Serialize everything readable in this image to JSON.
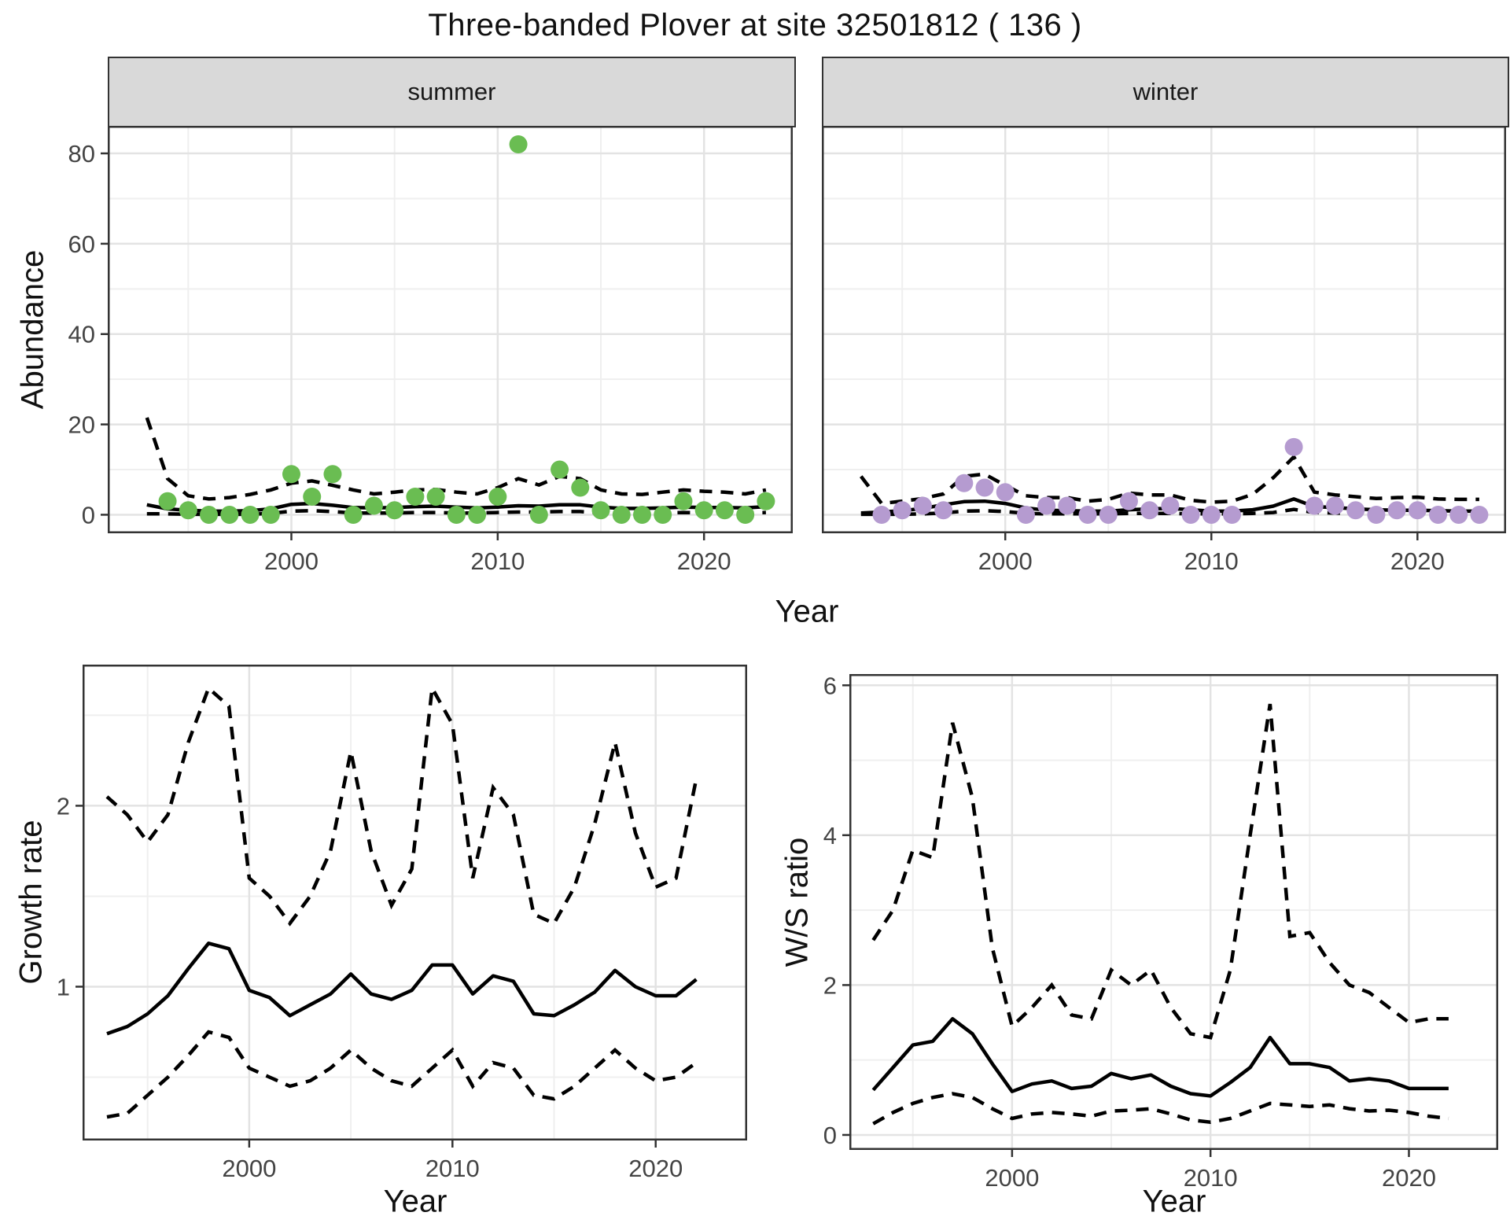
{
  "title": "Three-banded Plover at site 32501812 ( 136 )",
  "facets": {
    "summer_label": "summer",
    "winter_label": "winter"
  },
  "axis_titles": {
    "abundance": "Abundance",
    "year_top": "Year",
    "growth": "Growth rate",
    "ws": "W/S ratio",
    "year_bottom_left": "Year",
    "year_bottom_right": "Year"
  },
  "colors": {
    "summer_point": "#6abd52",
    "winter_point": "#b59bd0",
    "line": "#000000",
    "strip_bg": "#d9d9d9",
    "panel_border": "#333333",
    "grid_major": "#e3e3e3",
    "grid_minor": "#efefef",
    "tick_text": "#444444"
  },
  "chart_data": [
    {
      "id": "abundance-summer",
      "type": "scatter",
      "facet_label": "summer",
      "xlabel": "Year",
      "ylabel": "Abundance",
      "xlim": [
        1991.1,
        2024.3
      ],
      "ylim": [
        -4.1,
        86.1
      ],
      "x_major": [
        2000,
        2010,
        2020
      ],
      "x_minor": [
        1995,
        2005,
        2015
      ],
      "y_major": [
        0,
        20,
        40,
        60,
        80
      ],
      "y_minor": [
        10,
        30,
        50,
        70
      ],
      "x_tick_labels": [
        "2000",
        "2010",
        "2020"
      ],
      "y_tick_labels": [
        "0",
        "20",
        "40",
        "60",
        "80"
      ],
      "show_y_tick_labels": true,
      "point_color": "#6abd52",
      "series": {
        "points": {
          "years": [
            1994,
            1995,
            1996,
            1997,
            1998,
            1999,
            2000,
            2001,
            2002,
            2003,
            2004,
            2005,
            2006,
            2007,
            2008,
            2009,
            2010,
            2011,
            2012,
            2013,
            2014,
            2015,
            2016,
            2017,
            2018,
            2019,
            2020,
            2021,
            2022,
            2023
          ],
          "values": [
            3,
            1,
            0,
            0,
            0,
            0,
            9,
            4,
            9,
            0,
            2,
            1,
            4,
            4,
            0,
            0,
            4,
            82,
            0,
            10,
            6,
            1,
            0,
            0,
            0,
            3,
            1,
            1,
            0,
            3
          ]
        },
        "fit": {
          "years": [
            1993,
            1994,
            1995,
            1996,
            1997,
            1998,
            1999,
            2000,
            2001,
            2002,
            2003,
            2004,
            2005,
            2006,
            2007,
            2008,
            2009,
            2010,
            2011,
            2012,
            2013,
            2014,
            2015,
            2016,
            2017,
            2018,
            2019,
            2020,
            2021,
            2022,
            2023
          ],
          "values": [
            2.2,
            1.3,
            1.0,
            0.8,
            0.8,
            0.9,
            1.3,
            2.3,
            2.5,
            2.1,
            1.6,
            1.5,
            1.6,
            1.8,
            1.9,
            1.7,
            1.5,
            1.7,
            2.0,
            1.9,
            2.2,
            2.2,
            1.7,
            1.4,
            1.4,
            1.5,
            1.7,
            1.6,
            1.6,
            1.5,
            1.8
          ]
        },
        "upper": {
          "years": [
            1993,
            1994,
            1995,
            1996,
            1997,
            1998,
            1999,
            2000,
            2001,
            2002,
            2003,
            2004,
            2005,
            2006,
            2007,
            2008,
            2009,
            2010,
            2011,
            2012,
            2013,
            2014,
            2015,
            2016,
            2017,
            2018,
            2019,
            2020,
            2021,
            2022,
            2023
          ],
          "values": [
            21.5,
            8.0,
            4.2,
            3.5,
            3.8,
            4.5,
            5.5,
            7.0,
            7.5,
            6.5,
            5.5,
            4.6,
            5.0,
            5.5,
            5.6,
            5.0,
            4.6,
            6.0,
            8.0,
            6.6,
            8.5,
            8.0,
            5.5,
            4.6,
            4.5,
            5.0,
            5.5,
            5.2,
            5.0,
            4.6,
            5.5
          ]
        },
        "lower": {
          "years": [
            1993,
            1994,
            1995,
            1996,
            1997,
            1998,
            1999,
            2000,
            2001,
            2002,
            2003,
            2004,
            2005,
            2006,
            2007,
            2008,
            2009,
            2010,
            2011,
            2012,
            2013,
            2014,
            2015,
            2016,
            2017,
            2018,
            2019,
            2020,
            2021,
            2022,
            2023
          ],
          "values": [
            0.2,
            0.2,
            0.1,
            0.1,
            0.1,
            0.1,
            0.3,
            0.8,
            0.9,
            0.7,
            0.4,
            0.4,
            0.4,
            0.5,
            0.5,
            0.4,
            0.4,
            0.5,
            0.6,
            0.6,
            0.7,
            0.7,
            0.4,
            0.3,
            0.3,
            0.4,
            0.5,
            0.4,
            0.4,
            0.4,
            0.5
          ]
        }
      }
    },
    {
      "id": "abundance-winter",
      "type": "scatter",
      "facet_label": "winter",
      "xlabel": "Year",
      "ylabel": "Abundance",
      "xlim": [
        1991.1,
        2024.3
      ],
      "ylim": [
        -4.1,
        86.1
      ],
      "x_major": [
        2000,
        2010,
        2020
      ],
      "x_minor": [
        1995,
        2005,
        2015
      ],
      "y_major": [
        0,
        20,
        40,
        60,
        80
      ],
      "y_minor": [
        10,
        30,
        50,
        70
      ],
      "x_tick_labels": [
        "2000",
        "2010",
        "2020"
      ],
      "y_tick_labels": [
        "0",
        "20",
        "40",
        "60",
        "80"
      ],
      "show_y_tick_labels": false,
      "point_color": "#b59bd0",
      "series": {
        "points": {
          "years": [
            1994,
            1995,
            1996,
            1997,
            1998,
            1999,
            2000,
            2001,
            2002,
            2003,
            2004,
            2005,
            2006,
            2007,
            2008,
            2009,
            2010,
            2011,
            2014,
            2015,
            2016,
            2017,
            2018,
            2019,
            2020,
            2021,
            2022,
            2023
          ],
          "values": [
            0,
            1,
            2,
            1,
            7,
            6,
            5,
            0,
            2,
            2,
            0,
            0,
            3,
            1,
            2,
            0,
            0,
            0,
            15,
            2,
            2,
            1,
            0,
            1,
            1,
            0,
            0,
            0
          ]
        },
        "fit": {
          "years": [
            1993,
            1994,
            1995,
            1996,
            1997,
            1998,
            1999,
            2000,
            2001,
            2002,
            2003,
            2004,
            2005,
            2006,
            2007,
            2008,
            2009,
            2010,
            2011,
            2012,
            2013,
            2014,
            2015,
            2016,
            2017,
            2018,
            2019,
            2020,
            2021,
            2022,
            2023
          ],
          "values": [
            0.4,
            0.6,
            0.9,
            1.4,
            2.2,
            2.9,
            3.0,
            2.5,
            1.5,
            1.0,
            0.9,
            0.8,
            0.8,
            1.1,
            1.3,
            1.4,
            1.1,
            0.8,
            0.8,
            1.1,
            1.9,
            3.5,
            1.8,
            1.6,
            1.3,
            1.1,
            1.0,
            1.0,
            0.9,
            0.8,
            0.8
          ]
        },
        "upper": {
          "years": [
            1993,
            1994,
            1995,
            1996,
            1997,
            1998,
            1999,
            2000,
            2001,
            2002,
            2003,
            2004,
            2005,
            2006,
            2007,
            2008,
            2009,
            2010,
            2011,
            2012,
            2013,
            2014,
            2015,
            2016,
            2017,
            2018,
            2019,
            2020,
            2021,
            2022,
            2023
          ],
          "values": [
            8.5,
            2.5,
            3.0,
            3.6,
            4.6,
            8.5,
            9.0,
            6.5,
            4.2,
            3.8,
            3.8,
            3.0,
            3.4,
            4.8,
            4.4,
            4.4,
            3.2,
            2.8,
            3.0,
            4.5,
            8.2,
            12.8,
            5.0,
            4.4,
            4.0,
            3.6,
            3.8,
            3.9,
            3.5,
            3.4,
            3.4
          ]
        },
        "lower": {
          "years": [
            1993,
            1994,
            1995,
            1996,
            1997,
            1998,
            1999,
            2000,
            2001,
            2002,
            2003,
            2004,
            2005,
            2006,
            2007,
            2008,
            2009,
            2010,
            2011,
            2012,
            2013,
            2014,
            2015,
            2016,
            2017,
            2018,
            2019,
            2020,
            2021,
            2022,
            2023
          ],
          "values": [
            0.1,
            0.1,
            0.1,
            0.2,
            0.4,
            0.8,
            0.9,
            0.7,
            0.3,
            0.2,
            0.2,
            0.2,
            0.2,
            0.3,
            0.3,
            0.3,
            0.2,
            0.2,
            0.2,
            0.3,
            0.5,
            1.2,
            0.5,
            0.4,
            0.3,
            0.3,
            0.3,
            0.3,
            0.2,
            0.2,
            0.2
          ]
        }
      }
    },
    {
      "id": "growth-rate",
      "type": "line",
      "xlabel": "Year",
      "ylabel": "Growth rate",
      "xlim": [
        1991.8,
        2024.5
      ],
      "ylim": [
        0.15,
        2.78
      ],
      "x_major": [
        2000,
        2010,
        2020
      ],
      "x_minor": [
        1995,
        2005,
        2015
      ],
      "y_major": [
        1,
        2
      ],
      "y_minor": [
        0.5,
        1.5,
        2.5
      ],
      "x_tick_labels": [
        "2000",
        "2010",
        "2020"
      ],
      "y_tick_labels": [
        "1",
        "2"
      ],
      "show_y_tick_labels": true,
      "point_color": null,
      "series": {
        "fit": {
          "years": [
            1993,
            1994,
            1995,
            1996,
            1997,
            1998,
            1999,
            2000,
            2001,
            2002,
            2003,
            2004,
            2005,
            2006,
            2007,
            2008,
            2009,
            2010,
            2011,
            2012,
            2013,
            2014,
            2015,
            2016,
            2017,
            2018,
            2019,
            2020,
            2021,
            2022
          ],
          "values": [
            0.74,
            0.78,
            0.85,
            0.95,
            1.1,
            1.24,
            1.21,
            0.98,
            0.94,
            0.84,
            0.9,
            0.96,
            1.07,
            0.96,
            0.93,
            0.98,
            1.12,
            1.12,
            0.96,
            1.06,
            1.03,
            0.85,
            0.84,
            0.9,
            0.97,
            1.09,
            1.0,
            0.95,
            0.95,
            1.04
          ]
        },
        "upper": {
          "years": [
            1993,
            1994,
            1995,
            1996,
            1997,
            1998,
            1999,
            2000,
            2001,
            2002,
            2003,
            2004,
            2005,
            2006,
            2007,
            2008,
            2009,
            2010,
            2011,
            2012,
            2013,
            2014,
            2015,
            2016,
            2017,
            2018,
            2019,
            2020,
            2021,
            2022
          ],
          "values": [
            2.05,
            1.95,
            1.8,
            1.95,
            2.35,
            2.65,
            2.55,
            1.6,
            1.5,
            1.35,
            1.5,
            1.75,
            2.3,
            1.75,
            1.45,
            1.65,
            2.65,
            2.45,
            1.6,
            2.1,
            1.95,
            1.4,
            1.35,
            1.55,
            1.9,
            2.35,
            1.85,
            1.55,
            1.6,
            2.15
          ]
        },
        "lower": {
          "years": [
            1993,
            1994,
            1995,
            1996,
            1997,
            1998,
            1999,
            2000,
            2001,
            2002,
            2003,
            2004,
            2005,
            2006,
            2007,
            2008,
            2009,
            2010,
            2011,
            2012,
            2013,
            2014,
            2015,
            2016,
            2017,
            2018,
            2019,
            2020,
            2021,
            2022
          ],
          "values": [
            0.28,
            0.3,
            0.4,
            0.5,
            0.62,
            0.75,
            0.72,
            0.55,
            0.5,
            0.45,
            0.48,
            0.55,
            0.65,
            0.55,
            0.48,
            0.45,
            0.55,
            0.65,
            0.45,
            0.58,
            0.55,
            0.4,
            0.38,
            0.45,
            0.55,
            0.65,
            0.55,
            0.48,
            0.5,
            0.58
          ]
        }
      }
    },
    {
      "id": "ws-ratio",
      "type": "line",
      "xlabel": "Year",
      "ylabel": "W/S ratio",
      "xlim": [
        1991.8,
        2024.5
      ],
      "ylim": [
        -0.2,
        6.15
      ],
      "x_major": [
        2000,
        2010,
        2020
      ],
      "x_minor": [
        1995,
        2005,
        2015
      ],
      "y_major": [
        0,
        2,
        4,
        6
      ],
      "y_minor": [
        1,
        3,
        5
      ],
      "x_tick_labels": [
        "2000",
        "2010",
        "2020"
      ],
      "y_tick_labels": [
        "0",
        "2",
        "4",
        "6"
      ],
      "show_y_tick_labels": true,
      "point_color": null,
      "series": {
        "fit": {
          "years": [
            1993,
            1994,
            1995,
            1996,
            1997,
            1998,
            1999,
            2000,
            2001,
            2002,
            2003,
            2004,
            2005,
            2006,
            2007,
            2008,
            2009,
            2010,
            2011,
            2012,
            2013,
            2014,
            2015,
            2016,
            2017,
            2018,
            2019,
            2020,
            2021,
            2022
          ],
          "values": [
            0.6,
            0.9,
            1.2,
            1.25,
            1.55,
            1.35,
            0.95,
            0.58,
            0.68,
            0.72,
            0.62,
            0.65,
            0.82,
            0.75,
            0.8,
            0.65,
            0.55,
            0.52,
            0.7,
            0.9,
            1.3,
            0.95,
            0.95,
            0.9,
            0.72,
            0.75,
            0.72,
            0.62,
            0.62,
            0.62
          ]
        },
        "upper": {
          "years": [
            1993,
            1994,
            1995,
            1996,
            1997,
            1998,
            1999,
            2000,
            2001,
            2002,
            2003,
            2004,
            2005,
            2006,
            2007,
            2008,
            2009,
            2010,
            2011,
            2012,
            2013,
            2014,
            2015,
            2016,
            2017,
            2018,
            2019,
            2020,
            2021,
            2022
          ],
          "values": [
            2.6,
            3.0,
            3.8,
            3.7,
            5.5,
            4.5,
            2.5,
            1.45,
            1.7,
            2.0,
            1.6,
            1.55,
            2.2,
            2.0,
            2.2,
            1.7,
            1.35,
            1.3,
            2.2,
            4.0,
            5.75,
            2.65,
            2.7,
            2.3,
            2.0,
            1.9,
            1.7,
            1.5,
            1.55,
            1.55
          ]
        },
        "lower": {
          "years": [
            1993,
            1994,
            1995,
            1996,
            1997,
            1998,
            1999,
            2000,
            2001,
            2002,
            2003,
            2004,
            2005,
            2006,
            2007,
            2008,
            2009,
            2010,
            2011,
            2012,
            2013,
            2014,
            2015,
            2016,
            2017,
            2018,
            2019,
            2020,
            2021,
            2022
          ],
          "values": [
            0.15,
            0.3,
            0.42,
            0.5,
            0.55,
            0.5,
            0.35,
            0.22,
            0.28,
            0.3,
            0.28,
            0.25,
            0.32,
            0.33,
            0.35,
            0.28,
            0.2,
            0.17,
            0.22,
            0.32,
            0.42,
            0.4,
            0.38,
            0.4,
            0.35,
            0.32,
            0.33,
            0.3,
            0.25,
            0.22
          ]
        }
      }
    }
  ]
}
